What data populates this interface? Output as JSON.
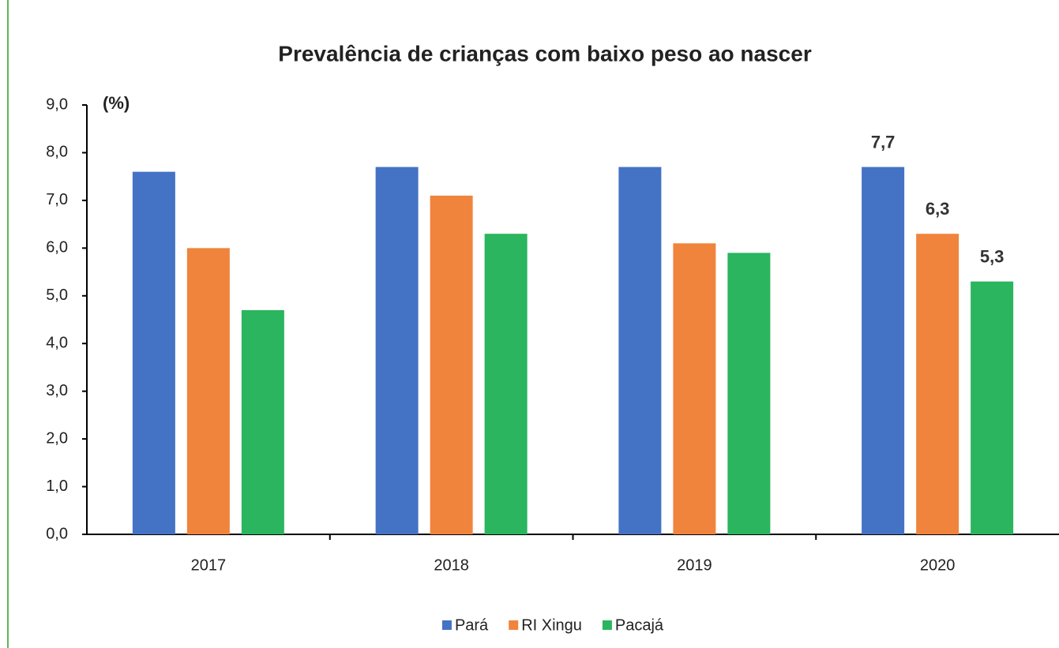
{
  "chart_data": {
    "type": "bar",
    "title": "Prevalência de crianças com baixo peso ao nascer",
    "y_label": "(%)",
    "categories": [
      "2017",
      "2018",
      "2019",
      "2020"
    ],
    "series": [
      {
        "name": "Pará",
        "color": "#4472c4",
        "values": [
          7.6,
          7.7,
          7.7,
          7.7
        ],
        "value_labels": [
          null,
          null,
          null,
          "7,7"
        ]
      },
      {
        "name": "RI Xingu",
        "color": "#f0843c",
        "values": [
          6.0,
          7.1,
          6.1,
          6.3
        ],
        "value_labels": [
          null,
          null,
          null,
          "6,3"
        ]
      },
      {
        "name": "Pacajá",
        "color": "#2ab55e",
        "values": [
          4.7,
          6.3,
          5.9,
          5.3
        ],
        "value_labels": [
          null,
          null,
          null,
          "5,3"
        ]
      }
    ],
    "ylim": [
      0,
      9
    ],
    "yticks": [
      {
        "value": 0,
        "label": "0,0"
      },
      {
        "value": 1,
        "label": "1,0"
      },
      {
        "value": 2,
        "label": "2,0"
      },
      {
        "value": 3,
        "label": "3,0"
      },
      {
        "value": 4,
        "label": "4,0"
      },
      {
        "value": 5,
        "label": "5,0"
      },
      {
        "value": 6,
        "label": "6,0"
      },
      {
        "value": 7,
        "label": "7,0"
      },
      {
        "value": 8,
        "label": "8,0"
      },
      {
        "value": 9,
        "label": "9,0"
      }
    ],
    "grid": false,
    "legend": "bottom"
  }
}
